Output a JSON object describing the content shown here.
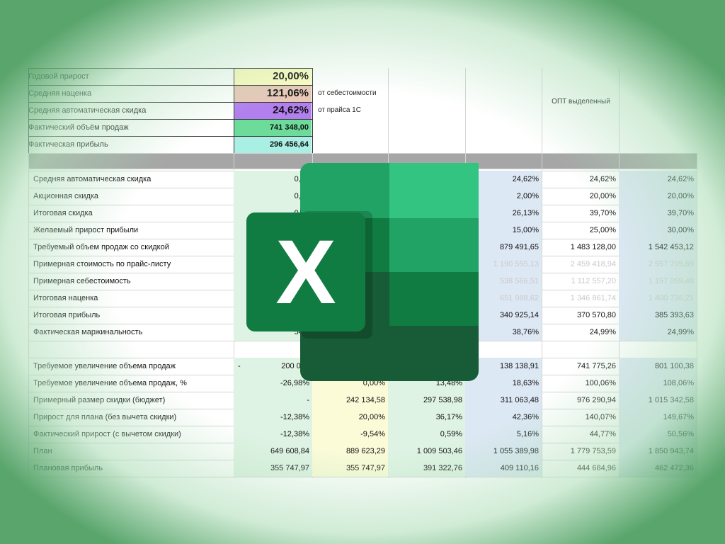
{
  "header": {
    "rows": [
      {
        "label": "Годовой прирост",
        "value": "20,00%",
        "color": "#fdfbc2"
      },
      {
        "label": "Средняя наценка",
        "value": "121,06%",
        "color": "#e8c8b8",
        "note": "от себестоимости"
      },
      {
        "label": "Средняя автоматическая скидка",
        "value": "24,62%",
        "color": "#b27fee",
        "note": "от прайса 1С"
      },
      {
        "label": "Фактический объём продаж",
        "value": "741 348,00",
        "color": "#6ddc9a"
      },
      {
        "label": "Фактическая прибыль",
        "value": "296 456,64",
        "color": "#a9efe3"
      }
    ],
    "merged_title": "ОПТ выделенный"
  },
  "table": {
    "rows": [
      {
        "label": "Средняя автоматическая скидка",
        "c1": "0,00",
        "c4": "24,62%",
        "c5": "24,62%",
        "c6": "24,62%"
      },
      {
        "label": "Акционная скидка",
        "c1": "0,00",
        "c4": "2,00%",
        "c5": "20,00%",
        "c6": "20,00%"
      },
      {
        "label": "Итоговая скидка",
        "c1": "0,00",
        "c4": "26,13%",
        "c5": "39,70%",
        "c6": "39,70%"
      },
      {
        "label": "Желаемый прирост прибыли",
        "c4": "15,00%",
        "c5": "25,00%",
        "c6": "30,00%"
      },
      {
        "label": "Требуемый объем продаж со скидкой",
        "c4": "879 491,65",
        "c5": "1 483 128,00",
        "c6": "1 542 453,12"
      },
      {
        "label": "Примерная стоимость по прайс-листу",
        "c4": "1 190 555,13",
        "c5": "2 459 418,94",
        "c6": "2 557 795,69",
        "faded": true
      },
      {
        "label": "Примерная себестоимость",
        "c4": "538 566,51",
        "c5": "1 112 557,20",
        "c6": "1 157 059,48",
        "faded": true
      },
      {
        "label": "Итоговая наценка",
        "c4": "651 988,62",
        "c5": "1 346 861,74",
        "c6": "1 400 736,21",
        "faded": true
      },
      {
        "label": "Итоговая прибыль",
        "c4": "340 925,14",
        "c5": "370 570,80",
        "c6": "385 393,63"
      },
      {
        "label": "Фактическая маржинальность",
        "c1": "54,7",
        "c4": "38,76%",
        "c5": "24,99%",
        "c6": "24,99%"
      }
    ],
    "rows2": [
      {
        "label": "Требуемое увеличение объема продаж",
        "c1": "200 012",
        "c1_prefix": "-",
        "c4": "138 138,91",
        "c5": "741 775,26",
        "c6": "801 100,38"
      },
      {
        "label": "Требуемое увеличение объема продаж, %",
        "c1": "-26,98%",
        "c2": "0,00%",
        "c3": "13,48%",
        "c4": "18,63%",
        "c5": "100,06%",
        "c6": "108,06%"
      },
      {
        "label": "Примерный размер скидки (бюджет)",
        "c1": "-",
        "c2": "242 134,58",
        "c3": "297 538,98",
        "c4": "311 063,48",
        "c5": "976 290,94",
        "c6": "1 015 342,58"
      },
      {
        "label": "Прирост для плана (без вычета скидки)",
        "c1": "-12,38%",
        "c2": "20,00%",
        "c3": "36,17%",
        "c4": "42,36%",
        "c5": "140,07%",
        "c6": "149,67%"
      },
      {
        "label": "Фактический прирост (с вычетом скидки)",
        "c1": "-12,38%",
        "c2": "-9,54%",
        "c3": "0,59%",
        "c4": "5,16%",
        "c5": "44,77%",
        "c6": "50,56%"
      },
      {
        "label": "План",
        "c1": "649 608,84",
        "c2": "889 623,29",
        "c3": "1 009 503,46",
        "c4": "1 055 389,98",
        "c5": "1 779 753,59",
        "c6": "1 850 943,74"
      },
      {
        "label": "Плановая прибыль",
        "c1": "355 747,97",
        "c2": "355 747,97",
        "c3": "391 322,76",
        "c4": "409 110,16",
        "c5": "444 684,96",
        "c6": "462 472,36"
      }
    ]
  },
  "colors": {
    "separator": "#a6a6a6",
    "green_col": "#dff3e4",
    "yellow_col": "#fbfbd8",
    "blue_col": "#dde8f5"
  },
  "logo": {
    "icon": "excel-logo-icon",
    "letter": "X"
  }
}
